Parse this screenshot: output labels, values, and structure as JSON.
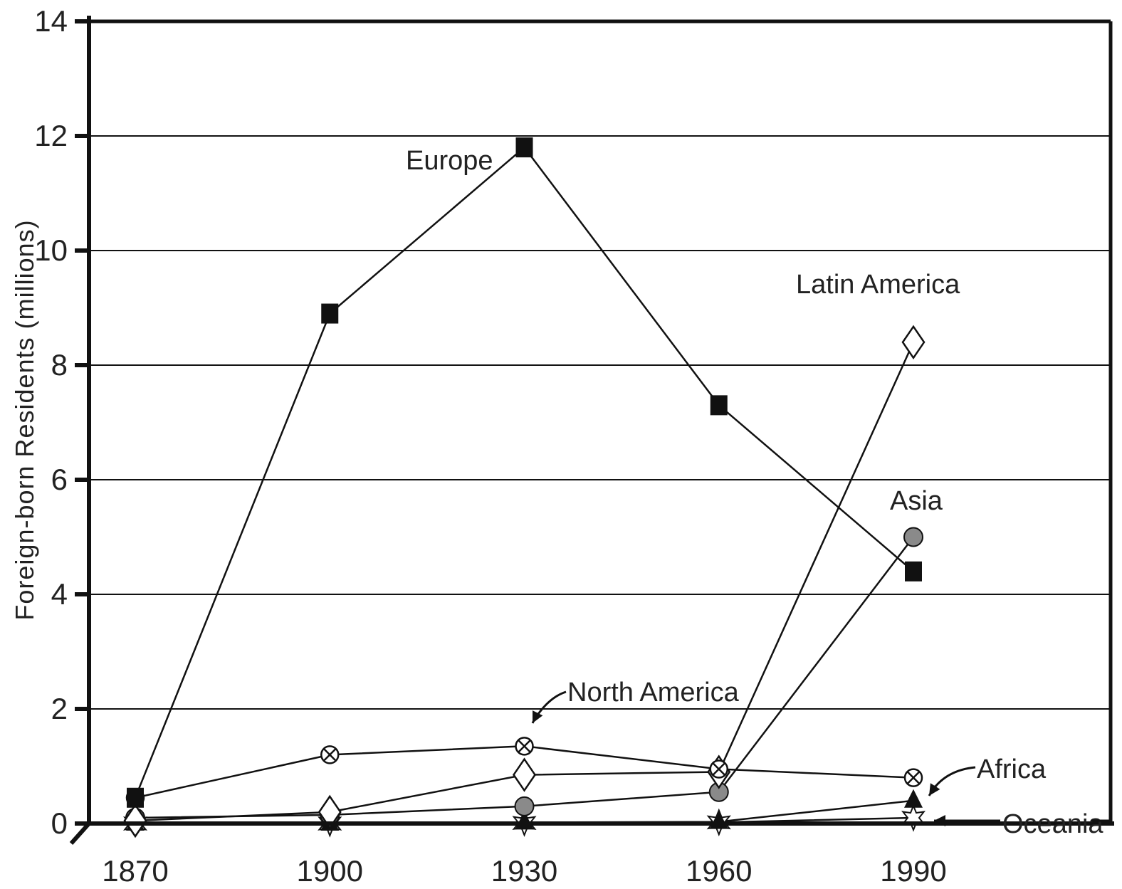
{
  "chart_data": {
    "type": "line",
    "ylabel": "Foreign-born Residents (millions)",
    "xlabel": "",
    "title": "",
    "x": [
      1870,
      1900,
      1930,
      1960,
      1990
    ],
    "x_tick_labels": [
      "1870",
      "1900",
      "1930",
      "1960",
      "1990"
    ],
    "ylim": [
      0,
      14
    ],
    "y_ticks": [
      0,
      2,
      4,
      6,
      8,
      10,
      12,
      14
    ],
    "y_tick_labels": [
      "0",
      "2",
      "4",
      "6",
      "8",
      "10",
      "12",
      "14"
    ],
    "grid": true,
    "legend": "none (series labelled directly on chart)",
    "series": [
      {
        "name": "Europe",
        "marker": "filled-square",
        "values": [
          0.45,
          8.9,
          11.8,
          7.3,
          4.4
        ]
      },
      {
        "name": "North America",
        "marker": "circle-x",
        "values": [
          0.45,
          1.2,
          1.35,
          0.95,
          0.8
        ]
      },
      {
        "name": "Latin America",
        "marker": "open-diamond",
        "values": [
          0.05,
          0.2,
          0.85,
          0.9,
          8.4
        ]
      },
      {
        "name": "Asia",
        "marker": "gray-circle",
        "values": [
          0.1,
          0.15,
          0.3,
          0.55,
          5.0
        ]
      },
      {
        "name": "Africa",
        "marker": "filled-triangle",
        "values": [
          0.0,
          0.0,
          0.02,
          0.03,
          0.4
        ]
      },
      {
        "name": "Oceania",
        "marker": "open-star",
        "values": [
          0.0,
          0.0,
          0.01,
          0.02,
          0.1
        ]
      }
    ]
  }
}
